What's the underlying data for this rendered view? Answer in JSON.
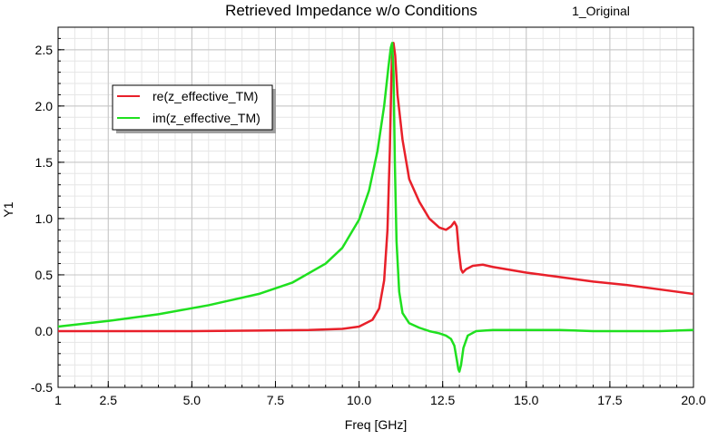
{
  "chart_data": {
    "type": "line",
    "title": "Retrieved Impedance w/o Conditions",
    "subtitle": "1_Original",
    "xlabel": "Freq [GHz]",
    "ylabel": "Y1",
    "xlim": [
      1,
      20
    ],
    "ylim": [
      -0.5,
      2.7
    ],
    "x_ticks": [
      1,
      2.5,
      5.0,
      7.5,
      10.0,
      12.5,
      15.0,
      17.5,
      20.0
    ],
    "x_tick_labels": [
      "1",
      "2.5",
      "5.0",
      "7.5",
      "10.0",
      "12.5",
      "15.0",
      "17.5",
      "20.0"
    ],
    "y_ticks": [
      -0.5,
      0.0,
      0.5,
      1.0,
      1.5,
      2.0,
      2.5
    ],
    "y_tick_labels": [
      "-0.5",
      "0.0",
      "0.5",
      "1.0",
      "1.5",
      "2.0",
      "2.5"
    ],
    "grid": true,
    "legend_position": "top-left",
    "series": [
      {
        "name": "re(z_effective_TM)",
        "color": "#e8202a",
        "x": [
          1,
          3,
          5,
          7,
          8.5,
          9.5,
          10.0,
          10.4,
          10.6,
          10.75,
          10.85,
          10.92,
          10.97,
          11.0,
          11.03,
          11.08,
          11.15,
          11.3,
          11.5,
          11.8,
          12.1,
          12.4,
          12.6,
          12.75,
          12.85,
          12.92,
          12.98,
          13.05,
          13.1,
          13.2,
          13.4,
          13.7,
          14.0,
          15.0,
          16.0,
          17.0,
          18.0,
          19.0,
          20.0
        ],
        "y": [
          0.0,
          0.0,
          0.0,
          0.005,
          0.01,
          0.02,
          0.04,
          0.1,
          0.2,
          0.45,
          0.9,
          1.6,
          2.3,
          2.55,
          2.56,
          2.45,
          2.1,
          1.7,
          1.35,
          1.15,
          1.0,
          0.92,
          0.9,
          0.93,
          0.97,
          0.93,
          0.72,
          0.55,
          0.52,
          0.55,
          0.58,
          0.59,
          0.57,
          0.52,
          0.48,
          0.44,
          0.41,
          0.37,
          0.33
        ]
      },
      {
        "name": "im(z_effective_TM)",
        "color": "#1fe01f",
        "x": [
          1,
          2.5,
          4,
          5.5,
          7,
          8,
          9,
          9.5,
          10.0,
          10.3,
          10.55,
          10.75,
          10.88,
          10.95,
          10.99,
          11.03,
          11.07,
          11.12,
          11.2,
          11.3,
          11.5,
          11.8,
          12.1,
          12.4,
          12.6,
          12.75,
          12.85,
          12.92,
          12.97,
          13.0,
          13.05,
          13.12,
          13.25,
          13.5,
          14.0,
          15.0,
          16.0,
          17.0,
          18.0,
          19.0,
          20.0
        ],
        "y": [
          0.04,
          0.09,
          0.15,
          0.23,
          0.33,
          0.43,
          0.6,
          0.74,
          0.99,
          1.25,
          1.6,
          2.0,
          2.35,
          2.52,
          2.56,
          2.3,
          1.5,
          0.8,
          0.35,
          0.16,
          0.07,
          0.03,
          0.0,
          -0.02,
          -0.04,
          -0.07,
          -0.13,
          -0.25,
          -0.34,
          -0.36,
          -0.3,
          -0.15,
          -0.04,
          0.0,
          0.01,
          0.01,
          0.01,
          0.0,
          0.0,
          0.0,
          0.01
        ]
      }
    ]
  }
}
